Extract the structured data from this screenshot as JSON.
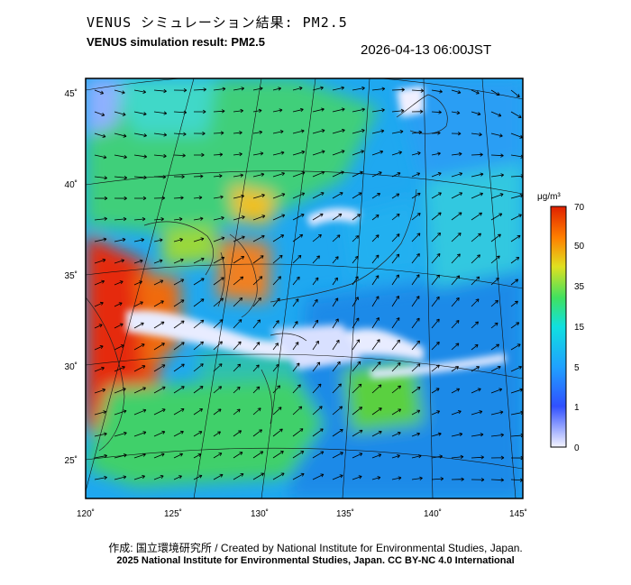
{
  "header": {
    "title_jp": "VENUS シミュレーション結果: PM2.5",
    "title_en": "VENUS simulation result: PM2.5",
    "timestamp": "2026-04-13 06:00JST"
  },
  "map": {
    "lon_ticks": [
      "120˚",
      "125˚",
      "130˚",
      "135˚",
      "140˚",
      "145˚"
    ],
    "lat_ticks": [
      "45˚",
      "40˚",
      "35˚",
      "30˚",
      "25˚"
    ]
  },
  "colorbar": {
    "unit": "μg/m³",
    "labels": [
      "70",
      "50",
      "35",
      "15",
      "5",
      "1",
      "0"
    ],
    "colors": [
      "#d9d9ff",
      "#2040ff",
      "#20a0ff",
      "#10e0e0",
      "#40e060",
      "#e0e020",
      "#ff8000",
      "#e02000"
    ]
  },
  "footer": {
    "credit_line": "作成: 国立環境研究所 / Created by National Institute for Environmental Studies, Japan.",
    "license_line": "2025 National Institute for Environmental Studies, Japan. CC BY-NC 4.0 International"
  }
}
